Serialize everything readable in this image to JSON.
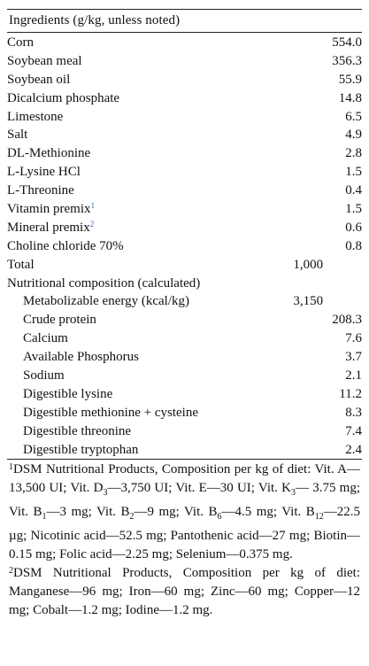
{
  "table": {
    "header": "Ingredients (g/kg, unless noted)",
    "ingredients": [
      {
        "name": "Corn",
        "value": "554.0"
      },
      {
        "name": "Soybean meal",
        "value": "356.3"
      },
      {
        "name": "Soybean oil",
        "value": "55.9"
      },
      {
        "name": "Dicalcium phosphate",
        "value": "14.8"
      },
      {
        "name": "Limestone",
        "value": "6.5"
      },
      {
        "name": "Salt",
        "value": "4.9"
      },
      {
        "name": "DL-Methionine",
        "value": "2.8"
      },
      {
        "name": "L-Lysine HCl",
        "value": "1.5"
      },
      {
        "name": "L-Threonine",
        "value": "0.4"
      },
      {
        "name": "Vitamin premix",
        "sup": "1",
        "value": "1.5"
      },
      {
        "name": "Mineral premix",
        "sup": "2",
        "value": "0.6"
      },
      {
        "name": "Choline chloride 70%",
        "value": "0.8"
      },
      {
        "name": "Total",
        "value": "1,000"
      }
    ],
    "section_label": "Nutritional composition (calculated)",
    "nutrients": [
      {
        "name": "Metabolizable energy (kcal/kg)",
        "value": "3,150"
      },
      {
        "name": "Crude protein",
        "value": "208.3"
      },
      {
        "name": "Calcium",
        "value": "7.6"
      },
      {
        "name": "Available Phosphorus",
        "value": "3.7"
      },
      {
        "name": "Sodium",
        "value": "2.1"
      },
      {
        "name": "Digestible lysine",
        "value": "11.2"
      },
      {
        "name": "Digestible methionine + cysteine",
        "value": "8.3"
      },
      {
        "name": "Digestible threonine",
        "value": "7.4"
      },
      {
        "name": "Digestible tryptophan",
        "value": "2.4"
      }
    ]
  },
  "footnotes": {
    "fn1": {
      "marker": "1",
      "p1": "DSM Nutritional Products, Composition per kg of diet: Vit. A—13,500 UI; Vit. D",
      "s1": "3",
      "p2": "—3,750 UI; Vit. E—30 UI; Vit. K",
      "s2": "3",
      "p3": "— 3.75 mg; Vit. B",
      "s3": "1",
      "p4": "—3 mg; Vit. B",
      "s4": "2",
      "p5": "—9 mg; Vit. B",
      "s5": "6",
      "p6": "—4.5 mg; Vit. B",
      "s6": "12",
      "p7": "—22.5 µg; Nicotinic acid—52.5 mg; Pantothenic acid—27 mg; Biotin—0.15 mg; Folic acid—2.25 mg; Selenium—0.375 mg."
    },
    "fn2": {
      "marker": "2",
      "text": "DSM Nutritional Products, Composition per kg of diet: Manganese—96 mg; Iron—60 mg; Zinc—60 mg; Copper—12 mg; Cobalt—1.2 mg; Iodine—1.2 mg."
    }
  }
}
